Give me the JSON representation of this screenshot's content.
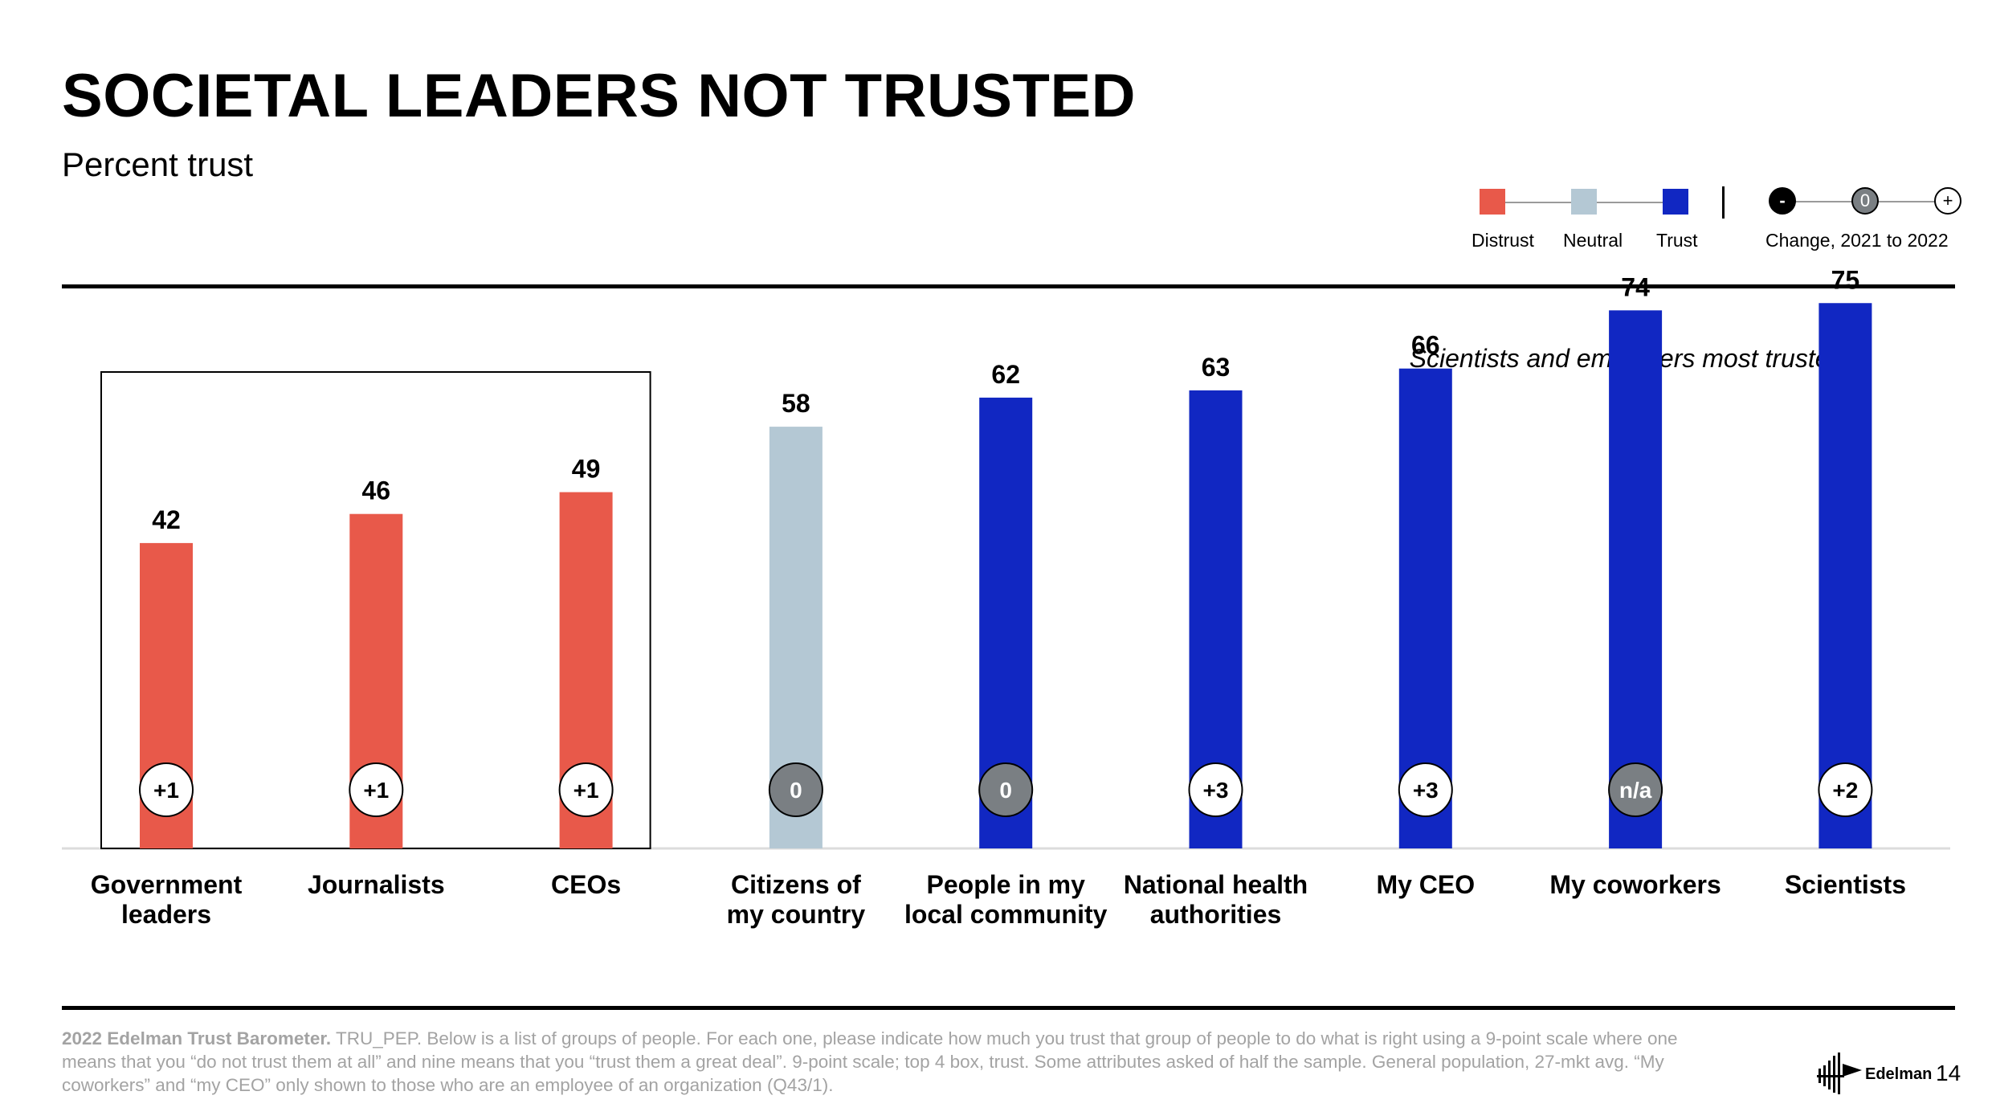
{
  "header": {
    "title": "SOCIETAL LEADERS NOT TRUSTED",
    "subtitle": "Percent trust"
  },
  "legend": {
    "distrust_label": "Distrust",
    "neutral_label": "Neutral",
    "trust_label": "Trust",
    "change_label": "Change, 2021 to 2022",
    "change_minus": "-",
    "change_zero": "0",
    "change_plus": "+",
    "distrust_color": "#E8594A",
    "neutral_color": "#B4C8D4",
    "trust_color": "#1127C2"
  },
  "annotation": "Scientists and employers most trusted",
  "chart_data": {
    "type": "bar",
    "title": "SOCIETAL LEADERS NOT TRUSTED",
    "subtitle": "Percent trust",
    "xlabel": "",
    "ylabel": "Percent trust",
    "ylim": [
      0,
      100
    ],
    "categories": [
      "Government leaders",
      "Journalists",
      "CEOs",
      "Citizens of my country",
      "People in my local community",
      "National health authorities",
      "My CEO",
      "My coworkers",
      "Scientists"
    ],
    "category_lines": [
      [
        "Government",
        "leaders"
      ],
      [
        "Journalists"
      ],
      [
        "CEOs"
      ],
      [
        "Citizens of",
        "my country"
      ],
      [
        "People in my",
        "local community"
      ],
      [
        "National health",
        "authorities"
      ],
      [
        "My CEO"
      ],
      [
        "My coworkers"
      ],
      [
        "Scientists"
      ]
    ],
    "values": [
      42,
      46,
      49,
      58,
      62,
      63,
      66,
      74,
      75
    ],
    "trust_level": [
      "distrust",
      "distrust",
      "distrust",
      "neutral",
      "trust",
      "trust",
      "trust",
      "trust",
      "trust"
    ],
    "change_2021_to_2022": [
      "+1",
      "+1",
      "+1",
      "0",
      "0",
      "+3",
      "+3",
      "n/a",
      "+2"
    ],
    "highlighted_group": [
      "Government leaders",
      "Journalists",
      "CEOs"
    ]
  },
  "footer": {
    "source_bold": "2022 Edelman Trust Barometer.",
    "source_text": " TRU_PEP. Below is a list of groups of people. For each one, please indicate how much you trust that group of people to do what is right using a 9-point scale where one means that you “do not trust them at all” and nine means that you “trust them a great deal”. 9-point scale; top 4 box, trust. Some attributes asked of half the sample. General population, 27-mkt avg. “My coworkers” and “my CEO” only shown to those who are an employee of an organization (Q43/1).",
    "logo_text": "Edelman",
    "page_number": "14"
  }
}
